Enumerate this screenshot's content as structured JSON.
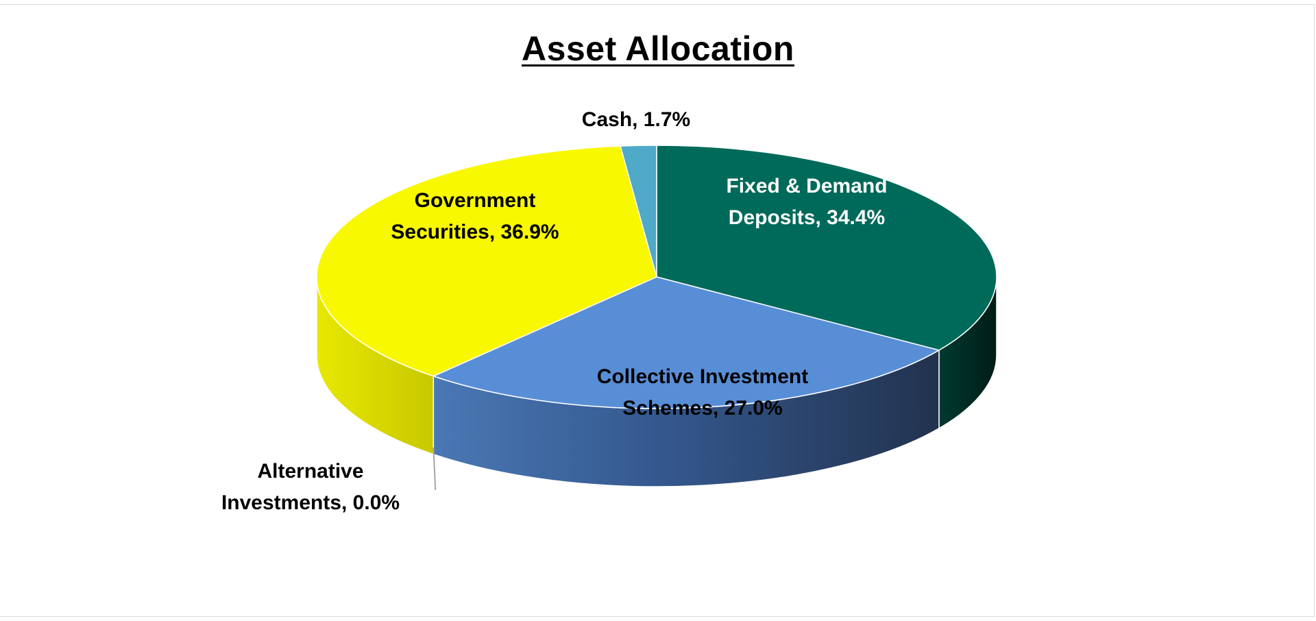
{
  "chart_data": {
    "type": "pie",
    "title": "Asset Allocation",
    "categories": [
      "Fixed & Demand Deposits",
      "Collective Investment Schemes",
      "Alternative Investments",
      "Government Securities",
      "Cash"
    ],
    "values": [
      34.4,
      27.0,
      0.0,
      36.9,
      1.7
    ],
    "labels": [
      [
        "Fixed & Demand",
        "Deposits, 34.4%"
      ],
      [
        "Collective Investment",
        "Schemes, 27.0%"
      ],
      [
        "Alternative",
        "Investments, 0.0%"
      ],
      [
        "Government",
        "Securities, 36.9%"
      ],
      [
        "Cash, 1.7%"
      ]
    ],
    "colors": [
      "#006a5a",
      "#588ed6",
      "#b4b4b4",
      "#f8f800",
      "#4fa9c8"
    ],
    "label_colors": [
      "#ffffff",
      "#000000",
      "#000000",
      "#000000",
      "#000000"
    ],
    "legend": "none"
  }
}
